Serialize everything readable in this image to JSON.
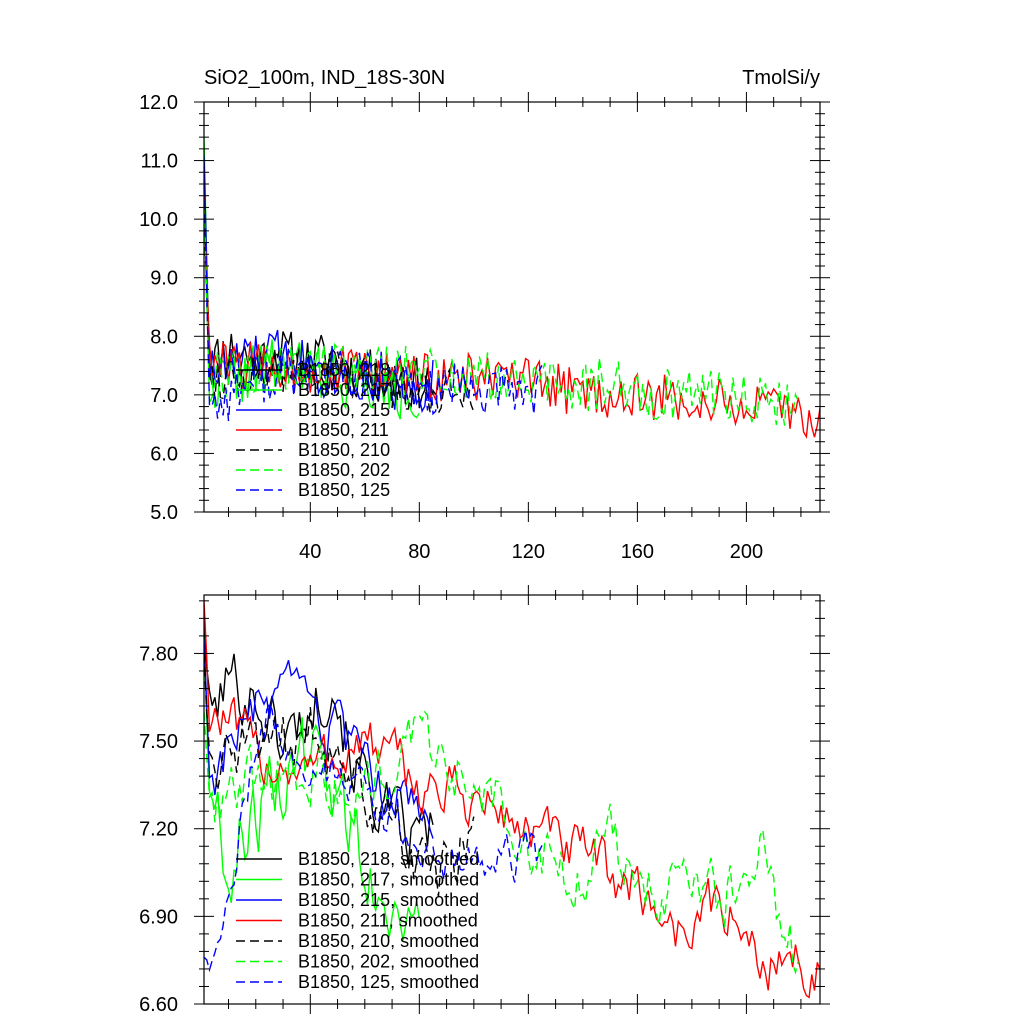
{
  "chart_data": [
    {
      "type": "line",
      "title_left": "SiO2_100m, IND_18S-30N",
      "title_right": "TmolSi/y",
      "xlim": [
        1,
        227
      ],
      "ylim": [
        5.0,
        12.0
      ],
      "xticks": [
        40,
        80,
        120,
        160,
        200
      ],
      "yticks": [
        "5.0",
        "6.0",
        "7.0",
        "8.0",
        "9.0",
        "10.0",
        "11.0",
        "12.0"
      ],
      "legend_position": "lower-left",
      "series": [
        {
          "name": "B1850, 218",
          "color": "#000000",
          "dash": "solid",
          "length": 85,
          "keypoints": [
            [
              1,
              7.4
            ],
            [
              5,
              7.6
            ],
            [
              10,
              7.8
            ],
            [
              20,
              7.6
            ],
            [
              30,
              7.7
            ],
            [
              40,
              7.55
            ],
            [
              48,
              7.7
            ],
            [
              55,
              7.4
            ],
            [
              65,
              7.3
            ],
            [
              75,
              7.2
            ],
            [
              85,
              7.2
            ]
          ],
          "noise": 0.45,
          "spike": 10.5,
          "seed": 11
        },
        {
          "name": "B1850, 217",
          "color": "#00ff00",
          "dash": "solid",
          "length": 80,
          "keypoints": [
            [
              1,
              7.2
            ],
            [
              10,
              7.3
            ],
            [
              20,
              7.4
            ],
            [
              30,
              7.5
            ],
            [
              40,
              7.45
            ],
            [
              50,
              7.3
            ],
            [
              60,
              7.2
            ],
            [
              70,
              7.0
            ],
            [
              80,
              7.05
            ]
          ],
          "noise": 0.5,
          "spike": 11.4,
          "seed": 22
        },
        {
          "name": "B1850, 215",
          "color": "#0000ff",
          "dash": "solid",
          "length": 85,
          "keypoints": [
            [
              1,
              7.3
            ],
            [
              10,
              7.5
            ],
            [
              20,
              7.6
            ],
            [
              30,
              7.7
            ],
            [
              40,
              7.5
            ],
            [
              50,
              7.4
            ],
            [
              60,
              7.3
            ],
            [
              70,
              7.2
            ],
            [
              85,
              7.2
            ]
          ],
          "noise": 0.5,
          "spike": 11.1,
          "seed": 33
        },
        {
          "name": "B1850, 211",
          "color": "#ff0000",
          "dash": "solid",
          "length": 227,
          "keypoints": [
            [
              1,
              7.5
            ],
            [
              20,
              7.5
            ],
            [
              40,
              7.45
            ],
            [
              60,
              7.4
            ],
            [
              80,
              7.3
            ],
            [
              100,
              7.3
            ],
            [
              120,
              7.2
            ],
            [
              140,
              7.05
            ],
            [
              160,
              6.95
            ],
            [
              180,
              6.9
            ],
            [
              200,
              6.8
            ],
            [
              215,
              6.7
            ],
            [
              227,
              6.6
            ]
          ],
          "noise": 0.42,
          "spike": 10.4,
          "seed": 44
        },
        {
          "name": "B1850, 210",
          "color": "#000000",
          "dash": "dashed",
          "length": 100,
          "keypoints": [
            [
              1,
              7.3
            ],
            [
              20,
              7.4
            ],
            [
              40,
              7.4
            ],
            [
              60,
              7.25
            ],
            [
              80,
              7.1
            ],
            [
              100,
              7.1
            ]
          ],
          "noise": 0.42,
          "spike": 10.0,
          "seed": 55
        },
        {
          "name": "B1850, 202",
          "color": "#00ff00",
          "dash": "dashed",
          "length": 219,
          "keypoints": [
            [
              1,
              7.3
            ],
            [
              20,
              7.4
            ],
            [
              40,
              7.45
            ],
            [
              60,
              7.45
            ],
            [
              80,
              7.4
            ],
            [
              100,
              7.3
            ],
            [
              120,
              7.2
            ],
            [
              140,
              7.1
            ],
            [
              150,
              7.3
            ],
            [
              160,
              7.0
            ],
            [
              180,
              7.05
            ],
            [
              200,
              7.0
            ],
            [
              210,
              6.85
            ],
            [
              219,
              6.8
            ]
          ],
          "noise": 0.45,
          "spike": 10.2,
          "seed": 66
        },
        {
          "name": "B1850, 125",
          "color": "#0000ff",
          "dash": "dashed",
          "length": 125,
          "keypoints": [
            [
              1,
              6.7
            ],
            [
              10,
              7.0
            ],
            [
              20,
              7.3
            ],
            [
              40,
              7.4
            ],
            [
              60,
              7.3
            ],
            [
              80,
              7.1
            ],
            [
              100,
              7.05
            ],
            [
              125,
              7.1
            ]
          ],
          "noise": 0.45,
          "spike": 10.8,
          "seed": 77
        }
      ]
    },
    {
      "type": "line",
      "xlim": [
        1,
        227
      ],
      "ylim": [
        6.6,
        8.0
      ],
      "yticks": [
        "6.60",
        "6.90",
        "7.20",
        "7.50",
        "7.80"
      ],
      "legend_position": "lower-left",
      "series": [
        {
          "name": "B1850, 218, smoothed",
          "color": "#000000",
          "dash": "solid",
          "length": 85,
          "keypoints": [
            [
              5,
              7.6
            ],
            [
              10,
              7.72
            ],
            [
              20,
              7.65
            ],
            [
              30,
              7.5
            ],
            [
              40,
              7.6
            ],
            [
              48,
              7.75
            ],
            [
              55,
              7.45
            ],
            [
              65,
              7.3
            ],
            [
              75,
              7.15
            ],
            [
              85,
              7.2
            ]
          ],
          "noise": 0.12,
          "start": 7.9,
          "seed": 101
        },
        {
          "name": "B1850, 217, smoothed",
          "color": "#00ff00",
          "dash": "solid",
          "length": 80,
          "keypoints": [
            [
              5,
              7.3
            ],
            [
              10,
              7.05
            ],
            [
              15,
              7.2
            ],
            [
              25,
              7.3
            ],
            [
              35,
              7.45
            ],
            [
              45,
              7.4
            ],
            [
              55,
              7.2
            ],
            [
              65,
              7.0
            ],
            [
              80,
              6.9
            ]
          ],
          "noise": 0.15,
          "start": 7.85,
          "seed": 102
        },
        {
          "name": "B1850, 215, smoothed",
          "color": "#0000ff",
          "dash": "solid",
          "length": 85,
          "keypoints": [
            [
              5,
              7.4
            ],
            [
              10,
              7.5
            ],
            [
              20,
              7.6
            ],
            [
              30,
              7.65
            ],
            [
              40,
              7.6
            ],
            [
              50,
              7.5
            ],
            [
              60,
              7.4
            ],
            [
              70,
              7.3
            ],
            [
              85,
              7.25
            ]
          ],
          "noise": 0.1,
          "start": 7.85,
          "seed": 103
        },
        {
          "name": "B1850, 211, smoothed",
          "color": "#ff0000",
          "dash": "solid",
          "length": 227,
          "keypoints": [
            [
              5,
              7.6
            ],
            [
              20,
              7.45
            ],
            [
              40,
              7.4
            ],
            [
              60,
              7.5
            ],
            [
              80,
              7.35
            ],
            [
              100,
              7.3
            ],
            [
              120,
              7.2
            ],
            [
              140,
              7.1
            ],
            [
              160,
              7.0
            ],
            [
              175,
              6.85
            ],
            [
              190,
              6.95
            ],
            [
              205,
              6.75
            ],
            [
              215,
              6.75
            ],
            [
              227,
              6.72
            ]
          ],
          "noise": 0.1,
          "start": 7.98,
          "seed": 104
        },
        {
          "name": "B1850, 210, smoothed",
          "color": "#000000",
          "dash": "dashed",
          "length": 100,
          "keypoints": [
            [
              5,
              7.4
            ],
            [
              20,
              7.45
            ],
            [
              40,
              7.55
            ],
            [
              55,
              7.4
            ],
            [
              70,
              7.2
            ],
            [
              85,
              7.0
            ],
            [
              100,
              7.2
            ]
          ],
          "noise": 0.12,
          "start": 7.8,
          "seed": 105
        },
        {
          "name": "B1850, 202, smoothed",
          "color": "#00ff00",
          "dash": "dashed",
          "length": 219,
          "keypoints": [
            [
              5,
              7.3
            ],
            [
              20,
              7.35
            ],
            [
              40,
              7.4
            ],
            [
              60,
              7.35
            ],
            [
              80,
              7.5
            ],
            [
              100,
              7.35
            ],
            [
              120,
              7.2
            ],
            [
              140,
              7.05
            ],
            [
              150,
              7.25
            ],
            [
              160,
              6.95
            ],
            [
              180,
              7.05
            ],
            [
              200,
              6.95
            ],
            [
              205,
              7.2
            ],
            [
              212,
              6.8
            ],
            [
              219,
              6.75
            ]
          ],
          "noise": 0.12,
          "start": 7.6,
          "seed": 106
        },
        {
          "name": "B1850, 125, smoothed",
          "color": "#0000ff",
          "dash": "dashed",
          "length": 125,
          "keypoints": [
            [
              1,
              6.74
            ],
            [
              5,
              6.75
            ],
            [
              10,
              6.9
            ],
            [
              15,
              7.3
            ],
            [
              25,
              7.6
            ],
            [
              35,
              7.45
            ],
            [
              50,
              7.4
            ],
            [
              65,
              7.3
            ],
            [
              80,
              7.05
            ],
            [
              95,
              7.1
            ],
            [
              110,
              7.1
            ],
            [
              125,
              7.12
            ]
          ],
          "noise": 0.08,
          "start": 6.76,
          "seed": 107
        }
      ]
    }
  ]
}
